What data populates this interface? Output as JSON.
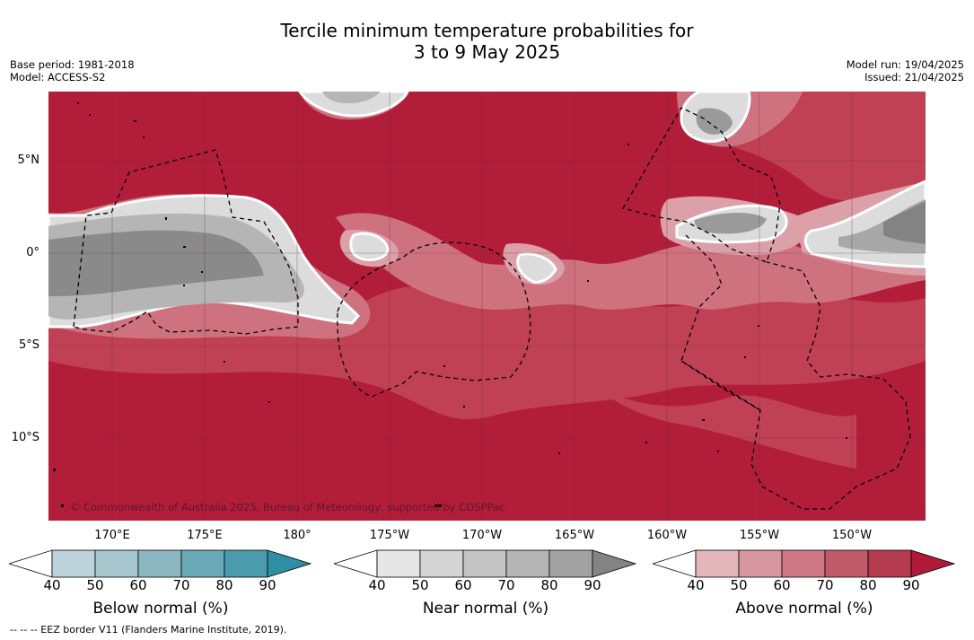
{
  "title_line1": "Tercile minimum temperature probabilities for",
  "title_line2": "3 to 9 May 2025",
  "base_period": "Base period: 1981-2018",
  "model": "Model: ACCESS-S2",
  "model_run": "Model run: 19/04/2025",
  "issued": "Issued: 21/04/2025",
  "copyright": "© Commonwealth of Australia 2025, Bureau of Meteorology, supported by COSPPac",
  "footnote": "--  --  -- EEZ border V11 (Flanders Marine Institute, 2019).",
  "lat_labels": [
    "5°N",
    "0°",
    "5°S",
    "10°S"
  ],
  "lon_labels": [
    "170°E",
    "175°E",
    "180°",
    "175°W",
    "170°W",
    "165°W",
    "160°W",
    "155°W",
    "150°W"
  ],
  "colorbars": [
    {
      "title": "Below normal (%)",
      "ticks": [
        "40",
        "50",
        "60",
        "70",
        "80",
        "90"
      ],
      "colors": [
        "#ffffff",
        "#bcd3db",
        "#a5c6cd",
        "#8bb7c1",
        "#6aa9b7",
        "#4a9bad",
        "#2e8ea3"
      ]
    },
    {
      "title": "Near normal (%)",
      "ticks": [
        "40",
        "50",
        "60",
        "70",
        "80",
        "90"
      ],
      "colors": [
        "#ffffff",
        "#e6e6e6",
        "#d5d5d5",
        "#c4c4c4",
        "#b4b4b4",
        "#a2a2a2",
        "#838383"
      ]
    },
    {
      "title": "Above normal (%)",
      "ticks": [
        "40",
        "50",
        "60",
        "70",
        "80",
        "90"
      ],
      "colors": [
        "#ffffff",
        "#e4b5bb",
        "#d8969f",
        "#cc7783",
        "#c15a69",
        "#b53b4f",
        "#ae1a37"
      ]
    }
  ]
}
